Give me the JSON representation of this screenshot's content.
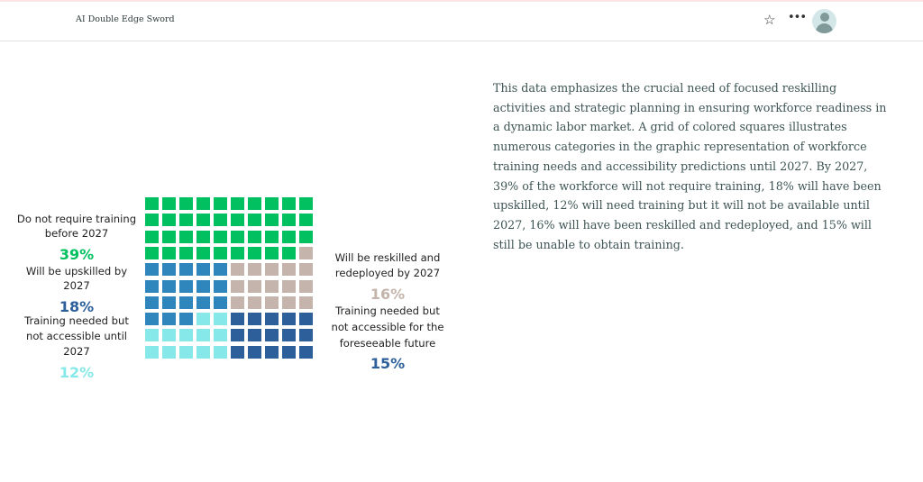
{
  "header": {
    "title": "AI Double Edge Sword",
    "icons": [
      "star-icon",
      "more-icon",
      "avatar-icon"
    ]
  },
  "chart_data": {
    "type": "waffle",
    "grid": "10x10",
    "categories": [
      {
        "label": "Do not require training before 2027",
        "value": 39,
        "value_label": "39%",
        "color": "#00c060"
      },
      {
        "label": "Will be upskilled by 2027",
        "value": 18,
        "value_label": "18%",
        "color": "#2e86bd"
      },
      {
        "label": "Training needed but not accessible until 2027",
        "value": 12,
        "value_label": "12%",
        "color": "#86e8e8"
      },
      {
        "label": "Will be reskilled and redeployed by 2027",
        "value": 16,
        "value_label": "16%",
        "color": "#c4b4ab"
      },
      {
        "label": "Training needed but not accessible for the foreseeable future",
        "value": 15,
        "value_label": "15%",
        "color": "#2d5f9b"
      }
    ],
    "cells": [
      "g",
      "g",
      "g",
      "g",
      "g",
      "g",
      "g",
      "g",
      "g",
      "g",
      "g",
      "g",
      "g",
      "g",
      "g",
      "g",
      "g",
      "g",
      "g",
      "g",
      "g",
      "g",
      "g",
      "g",
      "g",
      "g",
      "g",
      "g",
      "g",
      "g",
      "g",
      "g",
      "g",
      "g",
      "g",
      "g",
      "g",
      "g",
      "g",
      "t",
      "b",
      "b",
      "b",
      "b",
      "b",
      "t",
      "t",
      "t",
      "t",
      "t",
      "b",
      "b",
      "b",
      "b",
      "b",
      "t",
      "t",
      "t",
      "t",
      "t",
      "b",
      "b",
      "b",
      "b",
      "b",
      "t",
      "t",
      "t",
      "t",
      "t",
      "b",
      "b",
      "b",
      "c",
      "c",
      "d",
      "d",
      "d",
      "d",
      "d",
      "c",
      "c",
      "c",
      "c",
      "c",
      "d",
      "d",
      "d",
      "d",
      "d",
      "c",
      "c",
      "c",
      "c",
      "c",
      "d",
      "d",
      "d",
      "d",
      "d"
    ],
    "cell_key": {
      "g": 0,
      "b": 1,
      "c": 2,
      "t": 3,
      "d": 4
    }
  },
  "labels": {
    "l1a": "Do not require training",
    "l1b": "before 2027",
    "l2a": "Will be upskilled by",
    "l2b": "2027",
    "l3a": "Training needed but",
    "l3b": "not accessible until",
    "l3c": "2027",
    "l4a": "Will be reskilled and",
    "l4b": "redeployed by 2027",
    "l5a": "Training needed but",
    "l5b": "not accessible for the",
    "l5c": "foreseeable future"
  },
  "description": "This data emphasizes the crucial need of focused reskilling activities and strategic planning in ensuring workforce readiness in a dynamic labor market. A grid of colored squares illustrates numerous categories in the graphic representation of workforce training needs and accessibility predictions until 2027. By 2027, 39% of the workforce will not require training, 18% will have been upskilled, 12% will need training but it will not be available until 2027, 16% will have been reskilled and redeployed, and 15% will still be unable to obtain training."
}
